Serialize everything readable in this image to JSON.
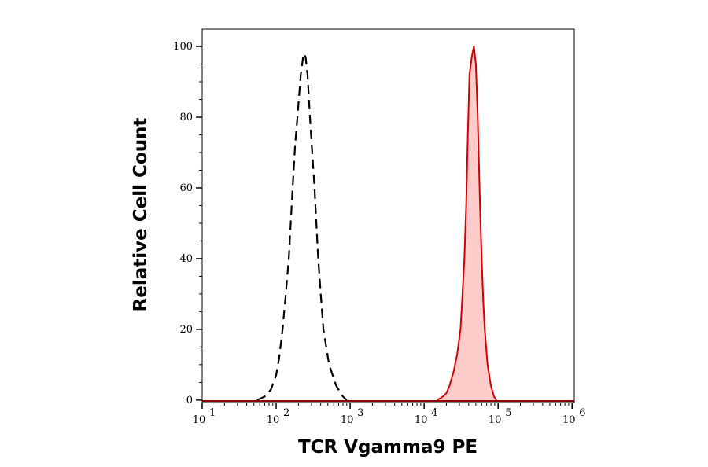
{
  "chart_data": {
    "type": "area",
    "title": "",
    "xlabel": "TCR Vgamma9 PE",
    "ylabel": "Relative Cell Count",
    "x_scale": "log",
    "xlim": [
      10,
      1070000
    ],
    "ylim": [
      -0.7,
      104.9
    ],
    "grid": false,
    "x_ticks": [
      {
        "value": 10,
        "base": "10",
        "exp": "1"
      },
      {
        "value": 100,
        "base": "10",
        "exp": "2"
      },
      {
        "value": 1000,
        "base": "10",
        "exp": "3"
      },
      {
        "value": 10000,
        "base": "10",
        "exp": "4"
      },
      {
        "value": 100000,
        "base": "10",
        "exp": "5"
      },
      {
        "value": 1000000,
        "base": "10",
        "exp": "6"
      }
    ],
    "y_ticks": [
      0,
      20,
      40,
      60,
      80,
      100
    ],
    "series": [
      {
        "style": "dashed-black-unfilled",
        "color": "#000000",
        "x": [
          55,
          70,
          85,
          100,
          110,
          122,
          135,
          148,
          167,
          180,
          194,
          215,
          235,
          250,
          265,
          286,
          330,
          370,
          400,
          435,
          520,
          650,
          800,
          900
        ],
        "y": [
          0,
          1,
          3,
          7,
          12,
          20,
          30,
          40,
          60,
          72,
          80,
          92,
          98,
          97,
          92,
          80,
          60,
          40,
          30,
          20,
          10,
          4,
          1,
          0
        ]
      },
      {
        "style": "solid-red-filled",
        "color": "#d40000",
        "fill": "#ffcccc",
        "x": [
          15000,
          18000,
          20000,
          22000,
          25000,
          28000,
          31000,
          33000,
          35000,
          37000,
          39000,
          41000,
          44000,
          47000,
          50000,
          53000,
          57000,
          60000,
          63000,
          66000,
          72000,
          80000,
          88000,
          95000
        ],
        "y": [
          0,
          1,
          2,
          4,
          8,
          13,
          20,
          30,
          40,
          55,
          75,
          92,
          97,
          100,
          95,
          80,
          55,
          40,
          28,
          20,
          10,
          4,
          1,
          0
        ]
      }
    ]
  }
}
